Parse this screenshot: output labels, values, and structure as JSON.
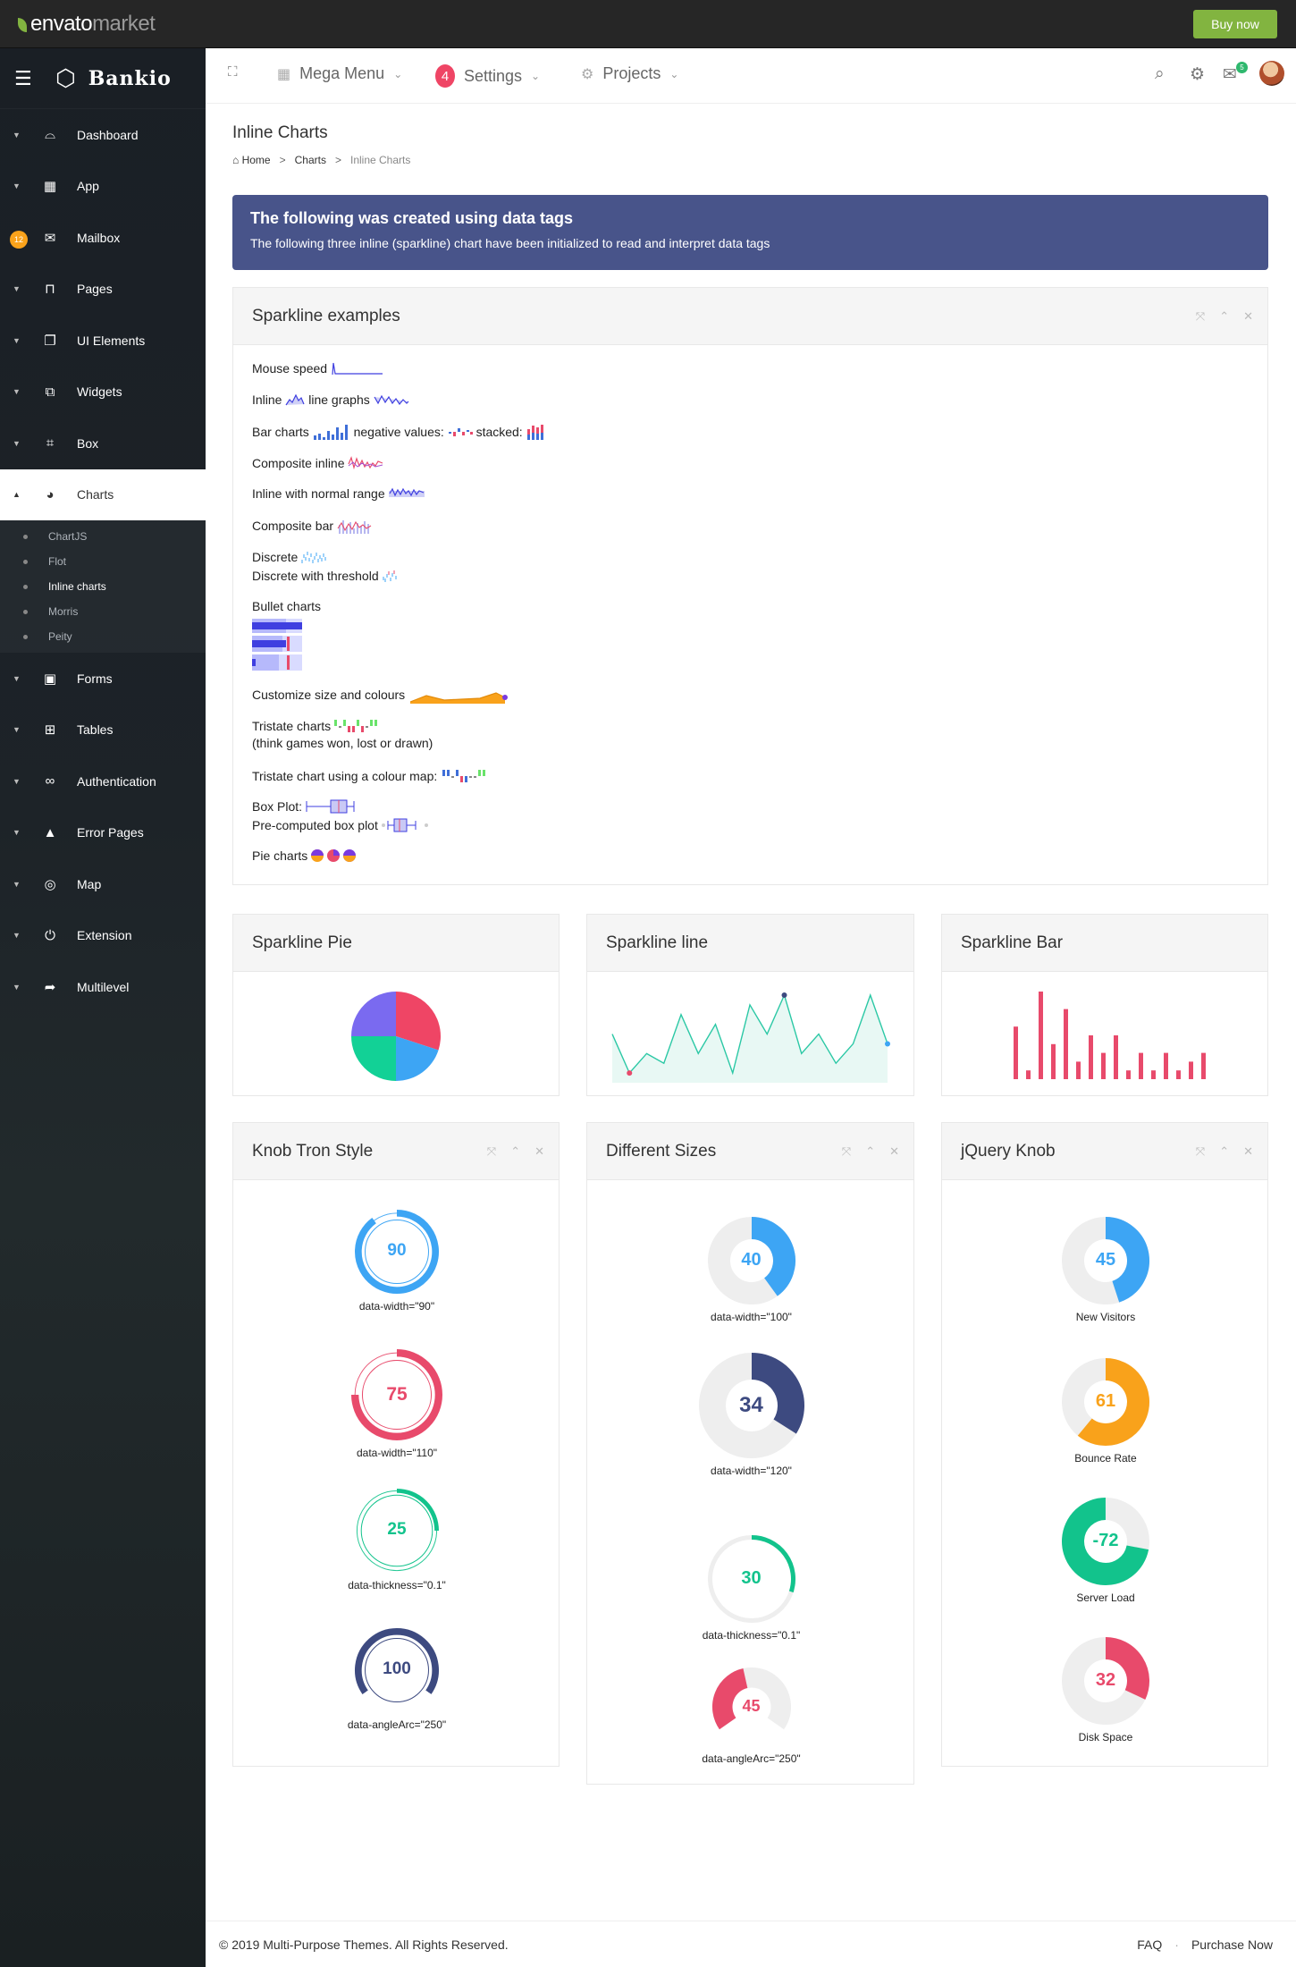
{
  "topbar": {
    "logo_main": "envato",
    "logo_sub": "market",
    "buy_label": "Buy now"
  },
  "sidebar": {
    "brand": "Bankio",
    "items": [
      {
        "label": "Dashboard",
        "icon": "dashboard-icon",
        "glyph": "⌓"
      },
      {
        "label": "App",
        "icon": "grid-icon",
        "glyph": "▦"
      },
      {
        "label": "Mailbox",
        "icon": "mail-icon",
        "glyph": "✉",
        "badge": "12"
      },
      {
        "label": "Pages",
        "icon": "pages-icon",
        "glyph": "⊓"
      },
      {
        "label": "UI Elements",
        "icon": "ui-elements-icon",
        "glyph": "❐"
      },
      {
        "label": "Widgets",
        "icon": "widgets-icon",
        "glyph": "⧉"
      },
      {
        "label": "Box",
        "icon": "box-icon",
        "glyph": "⌗"
      },
      {
        "label": "Charts",
        "icon": "pie-chart-icon",
        "glyph": "◕",
        "active": true
      },
      {
        "label": "Forms",
        "icon": "forms-icon",
        "glyph": "▣"
      },
      {
        "label": "Tables",
        "icon": "tables-icon",
        "glyph": "⊞"
      },
      {
        "label": "Authentication",
        "icon": "infinity-icon",
        "glyph": "∞"
      },
      {
        "label": "Error Pages",
        "icon": "warning-icon",
        "glyph": "▲"
      },
      {
        "label": "Map",
        "icon": "map-target-icon",
        "glyph": "◎"
      },
      {
        "label": "Extension",
        "icon": "plug-icon",
        "glyph": "⏻"
      },
      {
        "label": "Multilevel",
        "icon": "share-arrow-icon",
        "glyph": "➦"
      }
    ],
    "chart_sub": [
      "ChartJS",
      "Flot",
      "Inline charts",
      "Morris",
      "Peity"
    ]
  },
  "header": {
    "mega_menu": "Mega Menu",
    "settings": "Settings",
    "settings_badge": "4",
    "projects": "Projects",
    "mail_badge": "5"
  },
  "page": {
    "title": "Inline Charts",
    "breadcrumb": [
      "Home",
      "Charts",
      "Inline Charts"
    ]
  },
  "alert": {
    "title": "The following was created using data tags",
    "text": "The following three inline (sparkline) chart have been initialized to read and interpret data tags"
  },
  "examples": {
    "title": "Sparkline examples",
    "rows": {
      "mouse_speed": "Mouse speed",
      "inline": "Inline",
      "line_graphs": "line graphs",
      "bar_charts": "Bar charts",
      "negative_values": "negative values:",
      "stacked": "stacked:",
      "composite_inline": "Composite inline",
      "normal_range": "Inline with normal range",
      "composite_bar": "Composite bar",
      "discrete": "Discrete",
      "discrete_threshold": "Discrete with threshold",
      "bullet": "Bullet charts",
      "customize": "Customize size and colours",
      "tristate": "Tristate charts",
      "tristate_note": "(think games won, lost or drawn)",
      "tristate_map": "Tristate chart using a colour map:",
      "box_plot": "Box Plot:",
      "precomputed": "Pre-computed box plot",
      "pie_charts": "Pie charts"
    }
  },
  "sparkline_cards": {
    "pie": "Sparkline Pie",
    "line": "Sparkline line",
    "bar": "Sparkline Bar"
  },
  "knob_cards": {
    "tron": "Knob Tron Style",
    "sizes": "Different Sizes",
    "jquery": "jQuery Knob"
  },
  "chart_data": [
    {
      "type": "pie",
      "title": "Sparkline Pie",
      "values": [
        30,
        20,
        25,
        25
      ],
      "colors": [
        "#ef4565",
        "#3da5f4",
        "#12d196",
        "#7a6af0"
      ]
    },
    {
      "type": "line",
      "title": "Sparkline line",
      "values": [
        5,
        1,
        3,
        2,
        7,
        3,
        6,
        1,
        8,
        5,
        9,
        3,
        5,
        2,
        4,
        9,
        4
      ],
      "colors": [
        "#2bc8a5"
      ]
    },
    {
      "type": "bar",
      "title": "Sparkline Bar",
      "values": [
        6,
        1,
        10,
        4,
        8,
        2,
        5,
        3,
        5,
        1,
        3,
        1,
        3,
        1,
        2,
        3
      ],
      "colors": [
        "#e84a6b"
      ]
    },
    {
      "type": "knob",
      "title": "Knob Tron Style",
      "items": [
        {
          "value": 90,
          "label": "data-width=\"90\"",
          "color": "#3da5f4"
        },
        {
          "value": 75,
          "label": "data-width=\"110\"",
          "color": "#e84a6b"
        },
        {
          "value": 25,
          "label": "data-thickness=\"0.1\"",
          "color": "#12c38c"
        },
        {
          "value": 100,
          "label": "data-angleArc=\"250\"",
          "color": "#3d4a80"
        }
      ]
    },
    {
      "type": "knob",
      "title": "Different Sizes",
      "items": [
        {
          "value": 40,
          "label": "data-width=\"100\"",
          "color": "#3da5f4"
        },
        {
          "value": 34,
          "label": "data-width=\"120\"",
          "color": "#3d4a80"
        },
        {
          "value": 30,
          "label": "data-thickness=\"0.1\"",
          "color": "#12c38c"
        },
        {
          "value": 45,
          "label": "data-angleArc=\"250\"",
          "color": "#e84a6b"
        }
      ]
    },
    {
      "type": "knob",
      "title": "jQuery Knob",
      "items": [
        {
          "value": 45,
          "label": "New Visitors",
          "color": "#3da5f4"
        },
        {
          "value": 61,
          "label": "Bounce Rate",
          "color": "#f9a21b"
        },
        {
          "value": -72,
          "label": "Server Load",
          "color": "#12c38c"
        },
        {
          "value": 32,
          "label": "Disk Space",
          "color": "#e84a6b"
        }
      ]
    }
  ],
  "footer": {
    "copyright": "© 2019 Multi-Purpose Themes. All Rights Reserved.",
    "faq": "FAQ",
    "purchase": "Purchase Now"
  }
}
